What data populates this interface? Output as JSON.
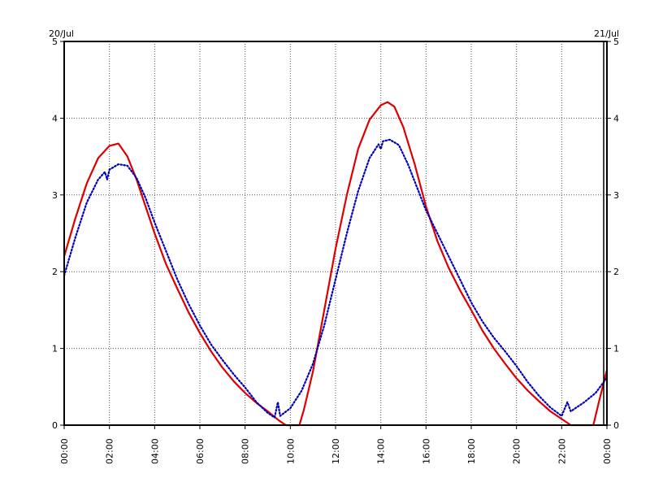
{
  "chart_data": {
    "type": "line",
    "title": "",
    "xlabel": "",
    "ylabel": "",
    "date_left": "20/Jul",
    "date_right": "21/Jul",
    "x_unit": "hours",
    "xlim": [
      0,
      24
    ],
    "ylim": [
      0,
      5
    ],
    "grid": true,
    "legend": "none",
    "x_ticks": [
      {
        "value": 0,
        "label": "00:00"
      },
      {
        "value": 2,
        "label": "02:00"
      },
      {
        "value": 4,
        "label": "04:00"
      },
      {
        "value": 6,
        "label": "06:00"
      },
      {
        "value": 8,
        "label": "08:00"
      },
      {
        "value": 10,
        "label": "10:00"
      },
      {
        "value": 12,
        "label": "12:00"
      },
      {
        "value": 14,
        "label": "14:00"
      },
      {
        "value": 16,
        "label": "16:00"
      },
      {
        "value": 18,
        "label": "18:00"
      },
      {
        "value": 20,
        "label": "20:00"
      },
      {
        "value": 22,
        "label": "22:00"
      },
      {
        "value": 24,
        "label": "00:00"
      }
    ],
    "y_ticks": [
      {
        "value": 0,
        "label": "0"
      },
      {
        "value": 1,
        "label": "1"
      },
      {
        "value": 2,
        "label": "2"
      },
      {
        "value": 3,
        "label": "3"
      },
      {
        "value": 4,
        "label": "4"
      },
      {
        "value": 5,
        "label": "5"
      }
    ],
    "series": [
      {
        "color": "#dd0000",
        "style": "solid",
        "points": [
          [
            0,
            2.2
          ],
          [
            0.5,
            2.7
          ],
          [
            1.0,
            3.15
          ],
          [
            1.5,
            3.48
          ],
          [
            2.0,
            3.64
          ],
          [
            2.4,
            3.67
          ],
          [
            2.8,
            3.5
          ],
          [
            3.2,
            3.2
          ],
          [
            3.6,
            2.85
          ],
          [
            4.0,
            2.5
          ],
          [
            4.5,
            2.1
          ],
          [
            5.0,
            1.78
          ],
          [
            5.5,
            1.47
          ],
          [
            6.0,
            1.2
          ],
          [
            6.5,
            0.96
          ],
          [
            7.0,
            0.75
          ],
          [
            7.5,
            0.57
          ],
          [
            8.0,
            0.42
          ],
          [
            8.5,
            0.29
          ],
          [
            9.0,
            0.18
          ],
          [
            9.5,
            0.06
          ],
          [
            9.8,
            0.0
          ],
          [
            10.4,
            0.0
          ],
          [
            10.6,
            0.2
          ],
          [
            11.0,
            0.7
          ],
          [
            11.5,
            1.5
          ],
          [
            12.0,
            2.3
          ],
          [
            12.5,
            3.0
          ],
          [
            13.0,
            3.6
          ],
          [
            13.5,
            3.98
          ],
          [
            14.0,
            4.17
          ],
          [
            14.3,
            4.21
          ],
          [
            14.6,
            4.15
          ],
          [
            15.0,
            3.88
          ],
          [
            15.5,
            3.4
          ],
          [
            16.0,
            2.85
          ],
          [
            16.5,
            2.4
          ],
          [
            17.0,
            2.05
          ],
          [
            17.5,
            1.76
          ],
          [
            18.0,
            1.5
          ],
          [
            18.5,
            1.23
          ],
          [
            19.0,
            1.0
          ],
          [
            19.5,
            0.8
          ],
          [
            20.0,
            0.61
          ],
          [
            20.5,
            0.45
          ],
          [
            21.0,
            0.31
          ],
          [
            21.5,
            0.18
          ],
          [
            22.0,
            0.08
          ],
          [
            22.4,
            0.0
          ],
          [
            23.4,
            0.0
          ],
          [
            23.6,
            0.25
          ],
          [
            24.0,
            0.72
          ]
        ]
      },
      {
        "color": "#0000bb",
        "style": "dotted",
        "points": [
          [
            0,
            1.95
          ],
          [
            0.5,
            2.45
          ],
          [
            1.0,
            2.9
          ],
          [
            1.5,
            3.2
          ],
          [
            1.8,
            3.3
          ],
          [
            1.9,
            3.2
          ],
          [
            2.0,
            3.33
          ],
          [
            2.4,
            3.4
          ],
          [
            2.8,
            3.38
          ],
          [
            3.2,
            3.22
          ],
          [
            3.6,
            2.96
          ],
          [
            4.0,
            2.64
          ],
          [
            4.5,
            2.27
          ],
          [
            5.0,
            1.9
          ],
          [
            5.5,
            1.58
          ],
          [
            6.0,
            1.3
          ],
          [
            6.5,
            1.05
          ],
          [
            7.0,
            0.85
          ],
          [
            7.5,
            0.66
          ],
          [
            8.0,
            0.49
          ],
          [
            8.5,
            0.3
          ],
          [
            9.0,
            0.16
          ],
          [
            9.3,
            0.1
          ],
          [
            9.45,
            0.3
          ],
          [
            9.55,
            0.12
          ],
          [
            10.0,
            0.22
          ],
          [
            10.5,
            0.45
          ],
          [
            11.0,
            0.8
          ],
          [
            11.5,
            1.3
          ],
          [
            12.0,
            1.9
          ],
          [
            12.5,
            2.5
          ],
          [
            13.0,
            3.05
          ],
          [
            13.5,
            3.48
          ],
          [
            13.9,
            3.66
          ],
          [
            14.0,
            3.6
          ],
          [
            14.1,
            3.7
          ],
          [
            14.4,
            3.72
          ],
          [
            14.8,
            3.65
          ],
          [
            15.2,
            3.4
          ],
          [
            15.6,
            3.1
          ],
          [
            16.0,
            2.8
          ],
          [
            16.5,
            2.5
          ],
          [
            17.0,
            2.2
          ],
          [
            17.5,
            1.9
          ],
          [
            18.0,
            1.6
          ],
          [
            18.5,
            1.35
          ],
          [
            19.0,
            1.14
          ],
          [
            19.5,
            0.96
          ],
          [
            20.0,
            0.77
          ],
          [
            20.5,
            0.56
          ],
          [
            21.0,
            0.38
          ],
          [
            21.5,
            0.23
          ],
          [
            22.0,
            0.12
          ],
          [
            22.25,
            0.3
          ],
          [
            22.4,
            0.18
          ],
          [
            23.0,
            0.3
          ],
          [
            23.5,
            0.42
          ],
          [
            24.0,
            0.62
          ]
        ]
      }
    ]
  }
}
